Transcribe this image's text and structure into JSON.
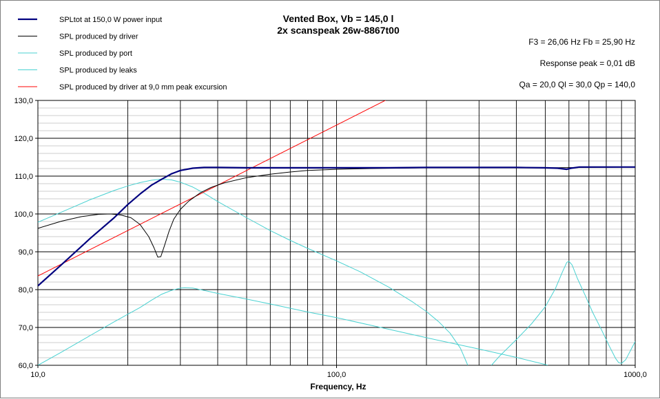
{
  "chart_data": {
    "type": "line",
    "title": "Vented Box, Vb = 145,0 l",
    "subtitle": "2x scanspeak 26w-8867t00",
    "xlabel": "Frequency, Hz",
    "ylabel": "",
    "x_scale": "log",
    "xlim": [
      10,
      1000
    ],
    "ylim": [
      60,
      130
    ],
    "x_tick_labels": [
      {
        "value": 10,
        "label": "10,0"
      },
      {
        "value": 100,
        "label": "100,0"
      },
      {
        "value": 1000,
        "label": "1000,0"
      }
    ],
    "y_tick_labels": [
      {
        "value": 60,
        "label": "60,0"
      },
      {
        "value": 70,
        "label": "70,0"
      },
      {
        "value": 80,
        "label": "80,0"
      },
      {
        "value": 90,
        "label": "90,0"
      },
      {
        "value": 100,
        "label": "100,0"
      },
      {
        "value": 110,
        "label": "110,0"
      },
      {
        "value": 120,
        "label": "120,0"
      },
      {
        "value": 130,
        "label": "130,0"
      }
    ],
    "grid": true,
    "legend_position": "top-left",
    "annotations": [
      "F3 = 26,06  Hz   Fb = 25,90  Hz",
      "Response peak = 0,01 dB",
      "Qa = 20,0   Ql = 30,0   Qp = 140,0"
    ],
    "series": [
      {
        "name": "SPLtot at 150,0 W power input",
        "color": "#00007f",
        "width": 2.2,
        "points": [
          [
            10,
            81
          ],
          [
            12,
            86.6
          ],
          [
            15,
            93.6
          ],
          [
            18,
            99
          ],
          [
            20,
            102.5
          ],
          [
            22,
            105.3
          ],
          [
            24,
            107.6
          ],
          [
            26,
            109.2
          ],
          [
            28,
            110.6
          ],
          [
            30,
            111.5
          ],
          [
            33,
            112.1
          ],
          [
            36,
            112.3
          ],
          [
            40,
            112.3
          ],
          [
            50,
            112.2
          ],
          [
            70,
            112.2
          ],
          [
            100,
            112.2
          ],
          [
            150,
            112.2
          ],
          [
            200,
            112.3
          ],
          [
            300,
            112.3
          ],
          [
            400,
            112.3
          ],
          [
            500,
            112.2
          ],
          [
            550,
            112.1
          ],
          [
            590,
            111.8
          ],
          [
            610,
            112.1
          ],
          [
            650,
            112.4
          ],
          [
            700,
            112.4
          ],
          [
            800,
            112.4
          ],
          [
            1000,
            112.4
          ]
        ]
      },
      {
        "name": "SPL produced by driver",
        "color": "#000000",
        "width": 1,
        "points": [
          [
            10,
            96.2
          ],
          [
            12,
            98.1
          ],
          [
            14,
            99.3
          ],
          [
            16,
            99.9
          ],
          [
            17.5,
            100
          ],
          [
            19,
            99.7
          ],
          [
            20.5,
            99
          ],
          [
            22,
            97.2
          ],
          [
            23.5,
            94
          ],
          [
            24.5,
            91
          ],
          [
            25.2,
            88.6
          ],
          [
            25.8,
            88.7
          ],
          [
            26.5,
            91.5
          ],
          [
            27.5,
            95.5
          ],
          [
            28.5,
            98.6
          ],
          [
            30,
            101.2
          ],
          [
            32,
            103.4
          ],
          [
            35,
            105.6
          ],
          [
            38,
            107
          ],
          [
            42,
            108.2
          ],
          [
            50,
            109.6
          ],
          [
            60,
            110.5
          ],
          [
            70,
            111.1
          ],
          [
            80,
            111.5
          ],
          [
            100,
            111.8
          ],
          [
            130,
            112
          ],
          [
            200,
            112.2
          ],
          [
            300,
            112.3
          ],
          [
            500,
            112.2
          ],
          [
            1000,
            112.4
          ]
        ]
      },
      {
        "name": "SPL produced by port",
        "color": "#48d1d1",
        "width": 1,
        "points": [
          [
            10,
            97.8
          ],
          [
            12,
            100.5
          ],
          [
            15,
            103.8
          ],
          [
            18,
            106.2
          ],
          [
            20,
            107.4
          ],
          [
            22,
            108.3
          ],
          [
            24,
            108.9
          ],
          [
            25.9,
            109.2
          ],
          [
            28,
            109
          ],
          [
            30,
            108.4
          ],
          [
            33,
            107.1
          ],
          [
            36,
            105.5
          ],
          [
            40,
            103.3
          ],
          [
            50,
            99
          ],
          [
            60,
            95.6
          ],
          [
            70,
            93
          ],
          [
            80,
            90.9
          ],
          [
            100,
            87.6
          ],
          [
            120,
            84.7
          ],
          [
            150,
            80.6
          ],
          [
            180,
            76.7
          ],
          [
            200,
            74.2
          ],
          [
            220,
            71.5
          ],
          [
            240,
            68.5
          ],
          [
            260,
            64.5
          ],
          [
            275,
            60
          ]
        ]
      },
      {
        "name": "SPL produced by leaks",
        "color": "#48d1d1",
        "width": 1,
        "points": [
          [
            10,
            60
          ],
          [
            12,
            63.5
          ],
          [
            15,
            67.9
          ],
          [
            18,
            71.5
          ],
          [
            20,
            73.5
          ],
          [
            22,
            75.3
          ],
          [
            24,
            77.2
          ],
          [
            26,
            78.8
          ],
          [
            28,
            79.8
          ],
          [
            30,
            80.4
          ],
          [
            31,
            80.5
          ],
          [
            33,
            80.4
          ],
          [
            36,
            79.8
          ],
          [
            40,
            79
          ],
          [
            50,
            77.5
          ],
          [
            60,
            76.2
          ],
          [
            80,
            74.1
          ],
          [
            100,
            72.6
          ],
          [
            150,
            69.5
          ],
          [
            200,
            67.3
          ],
          [
            300,
            64.3
          ],
          [
            400,
            62.1
          ],
          [
            500,
            60.2
          ],
          [
            510,
            60
          ]
        ]
      },
      {
        "name": "",
        "color": "#48d1d1",
        "width": 1,
        "points": [
          [
            330,
            60
          ],
          [
            350,
            62.3
          ],
          [
            400,
            66.8
          ],
          [
            450,
            71
          ],
          [
            500,
            75.5
          ],
          [
            540,
            80.2
          ],
          [
            570,
            84.6
          ],
          [
            590,
            87.2
          ],
          [
            600,
            87.5
          ],
          [
            615,
            86.5
          ],
          [
            640,
            83
          ],
          [
            680,
            78.5
          ],
          [
            720,
            74
          ],
          [
            770,
            69.5
          ],
          [
            820,
            65
          ],
          [
            860,
            61.8
          ],
          [
            880,
            60.7
          ],
          [
            900,
            60.5
          ],
          [
            930,
            61.5
          ],
          [
            960,
            63.6
          ],
          [
            1000,
            66.3
          ]
        ]
      },
      {
        "name": "SPL produced by driver at 9,0 mm peak excursion",
        "color": "#ff0000",
        "width": 1,
        "points": [
          [
            10,
            83.6
          ],
          [
            25,
            99.5
          ],
          [
            40,
            107.6
          ],
          [
            50,
            111.5
          ],
          [
            100,
            123.5
          ],
          [
            157,
            131.3
          ]
        ]
      }
    ]
  }
}
